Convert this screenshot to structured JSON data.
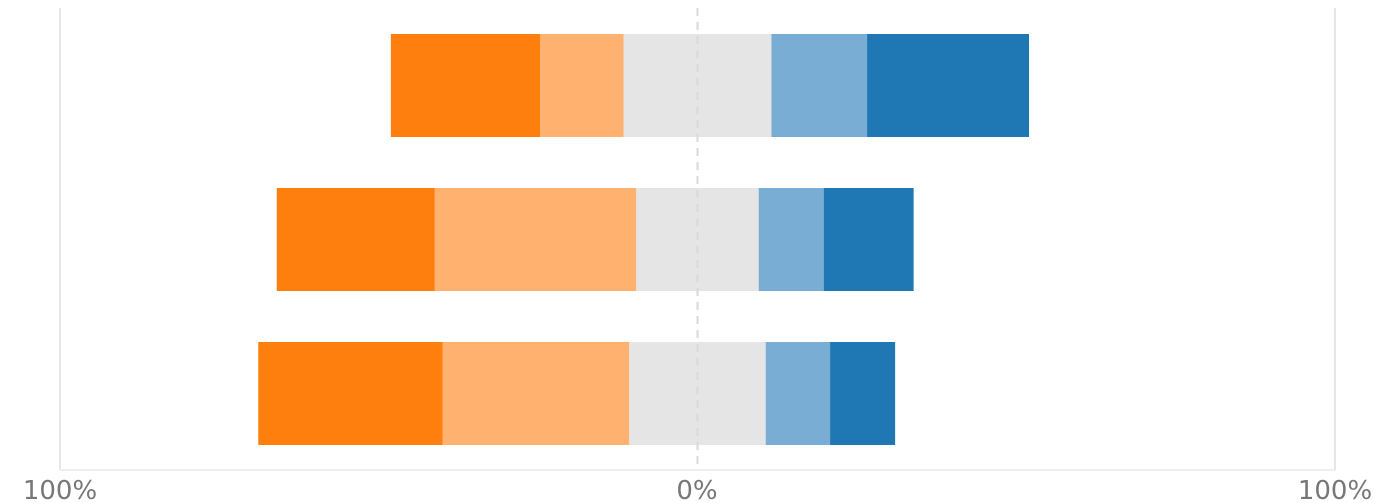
{
  "chart_data": {
    "type": "bar",
    "orientation": "horizontal",
    "stacking": "diverging",
    "xlim": [
      -100,
      100
    ],
    "tick_labels": [
      "100%",
      "0%",
      "100%"
    ],
    "grid": true,
    "rows": [
      {
        "values": [
          -23.4,
          -13.1,
          -11.6,
          11.6,
          15.0,
          25.4
        ]
      },
      {
        "values": [
          -24.8,
          -31.6,
          -9.6,
          9.6,
          10.2,
          14.1
        ]
      },
      {
        "values": [
          -28.9,
          -29.3,
          -10.7,
          10.7,
          10.1,
          10.2
        ]
      }
    ],
    "segment_colors": [
      "#ff7f0e",
      "#ffb170",
      "#e5e5e5",
      "#e5e5e5",
      "#7aadd3",
      "#1f77b4"
    ]
  }
}
